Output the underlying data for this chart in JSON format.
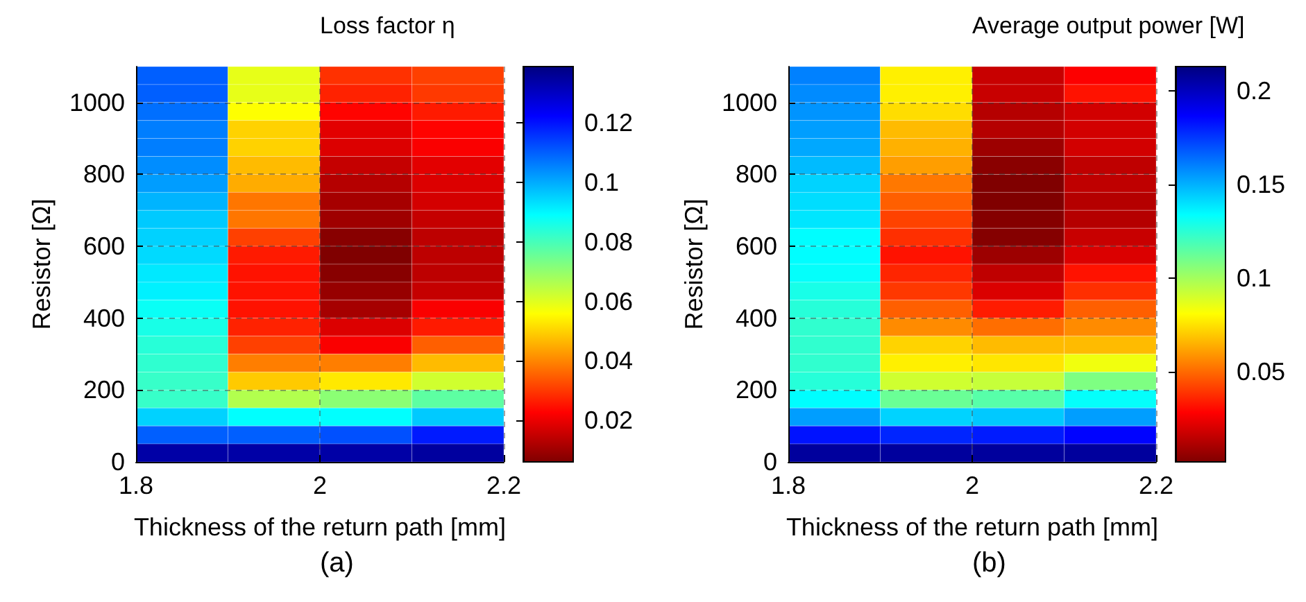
{
  "chart_data": [
    {
      "type": "heatmap",
      "title": "Loss factor η",
      "xlabel": "Thickness of the return path [mm]",
      "ylabel": "Resistor [Ω]",
      "annotations": [
        "(a)"
      ],
      "xlim": [
        1.8,
        2.2
      ],
      "xticks": [
        1.8,
        2,
        2.2
      ],
      "ylim": [
        0,
        1100
      ],
      "yticks": [
        0,
        200,
        400,
        600,
        800,
        1000
      ],
      "grid": true,
      "clim": [
        0.006,
        0.139
      ],
      "cticks": [
        0.02,
        0.04,
        0.06,
        0.08,
        0.1,
        0.12
      ],
      "cells": [
        [
          0.11,
          0.059,
          0.029,
          0.031
        ],
        [
          0.11,
          0.059,
          0.027,
          0.03
        ],
        [
          0.108,
          0.056,
          0.023,
          0.026
        ],
        [
          0.106,
          0.05,
          0.019,
          0.023
        ],
        [
          0.106,
          0.05,
          0.018,
          0.022
        ],
        [
          0.104,
          0.047,
          0.015,
          0.019
        ],
        [
          0.102,
          0.045,
          0.013,
          0.018
        ],
        [
          0.099,
          0.038,
          0.011,
          0.017
        ],
        [
          0.096,
          0.038,
          0.01,
          0.015
        ],
        [
          0.095,
          0.031,
          0.007,
          0.014
        ],
        [
          0.094,
          0.026,
          0.006,
          0.014
        ],
        [
          0.092,
          0.025,
          0.007,
          0.014
        ],
        [
          0.091,
          0.025,
          0.009,
          0.015
        ],
        [
          0.088,
          0.025,
          0.011,
          0.022
        ],
        [
          0.086,
          0.027,
          0.018,
          0.026
        ],
        [
          0.084,
          0.031,
          0.022,
          0.035
        ],
        [
          0.083,
          0.039,
          0.039,
          0.047
        ],
        [
          0.082,
          0.049,
          0.053,
          0.062
        ],
        [
          0.082,
          0.066,
          0.071,
          0.077
        ],
        [
          0.095,
          0.089,
          0.089,
          0.096
        ],
        [
          0.11,
          0.11,
          0.112,
          0.119
        ],
        [
          0.134,
          0.134,
          0.134,
          0.135
        ]
      ]
    },
    {
      "type": "heatmap",
      "title": "Average output power [W]",
      "xlabel": "Thickness of the return path [mm]",
      "ylabel": "Resistor [Ω]",
      "annotations": [
        "(b)"
      ],
      "xlim": [
        1.8,
        2.2
      ],
      "xticks": [
        1.8,
        2,
        2.2
      ],
      "ylim": [
        0,
        1100
      ],
      "yticks": [
        0,
        200,
        400,
        600,
        800,
        1000
      ],
      "grid": true,
      "clim": [
        0.002,
        0.213
      ],
      "cticks": [
        0.05,
        0.1,
        0.15,
        0.2
      ],
      "cells": [
        [
          0.16,
          0.078,
          0.017,
          0.028
        ],
        [
          0.158,
          0.078,
          0.017,
          0.032
        ],
        [
          0.156,
          0.074,
          0.013,
          0.019
        ],
        [
          0.154,
          0.067,
          0.013,
          0.019
        ],
        [
          0.152,
          0.065,
          0.008,
          0.019
        ],
        [
          0.148,
          0.061,
          0.004,
          0.015
        ],
        [
          0.143,
          0.053,
          0.002,
          0.015
        ],
        [
          0.141,
          0.048,
          0.002,
          0.013
        ],
        [
          0.139,
          0.042,
          0.003,
          0.013
        ],
        [
          0.134,
          0.038,
          0.003,
          0.017
        ],
        [
          0.134,
          0.032,
          0.008,
          0.021
        ],
        [
          0.133,
          0.036,
          0.015,
          0.032
        ],
        [
          0.129,
          0.04,
          0.021,
          0.038
        ],
        [
          0.126,
          0.048,
          0.034,
          0.048
        ],
        [
          0.124,
          0.057,
          0.051,
          0.057
        ],
        [
          0.124,
          0.072,
          0.067,
          0.067
        ],
        [
          0.124,
          0.078,
          0.076,
          0.084
        ],
        [
          0.126,
          0.091,
          0.093,
          0.108
        ],
        [
          0.134,
          0.112,
          0.116,
          0.133
        ],
        [
          0.154,
          0.143,
          0.145,
          0.154
        ],
        [
          0.183,
          0.179,
          0.181,
          0.186
        ],
        [
          0.207,
          0.207,
          0.207,
          0.207
        ]
      ]
    }
  ]
}
